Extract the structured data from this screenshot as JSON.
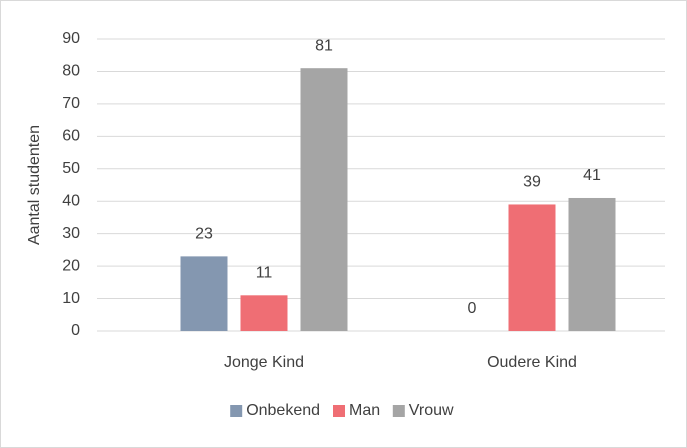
{
  "chart_data": {
    "type": "bar",
    "categories": [
      "Jonge Kind",
      "Oudere Kind"
    ],
    "series": [
      {
        "name": "Onbekend",
        "color": "#8497b0",
        "values": [
          23,
          0
        ]
      },
      {
        "name": "Man",
        "color": "#ef6e74",
        "values": [
          11,
          39
        ]
      },
      {
        "name": "Vrouw",
        "color": "#a5a5a5",
        "values": [
          81,
          41
        ]
      }
    ],
    "ylabel": "Aantal studenten",
    "ylim": [
      0,
      90
    ],
    "yticks": [
      0,
      10,
      20,
      30,
      40,
      50,
      60,
      70,
      80,
      90
    ],
    "grid": true,
    "legend": "bottom"
  }
}
